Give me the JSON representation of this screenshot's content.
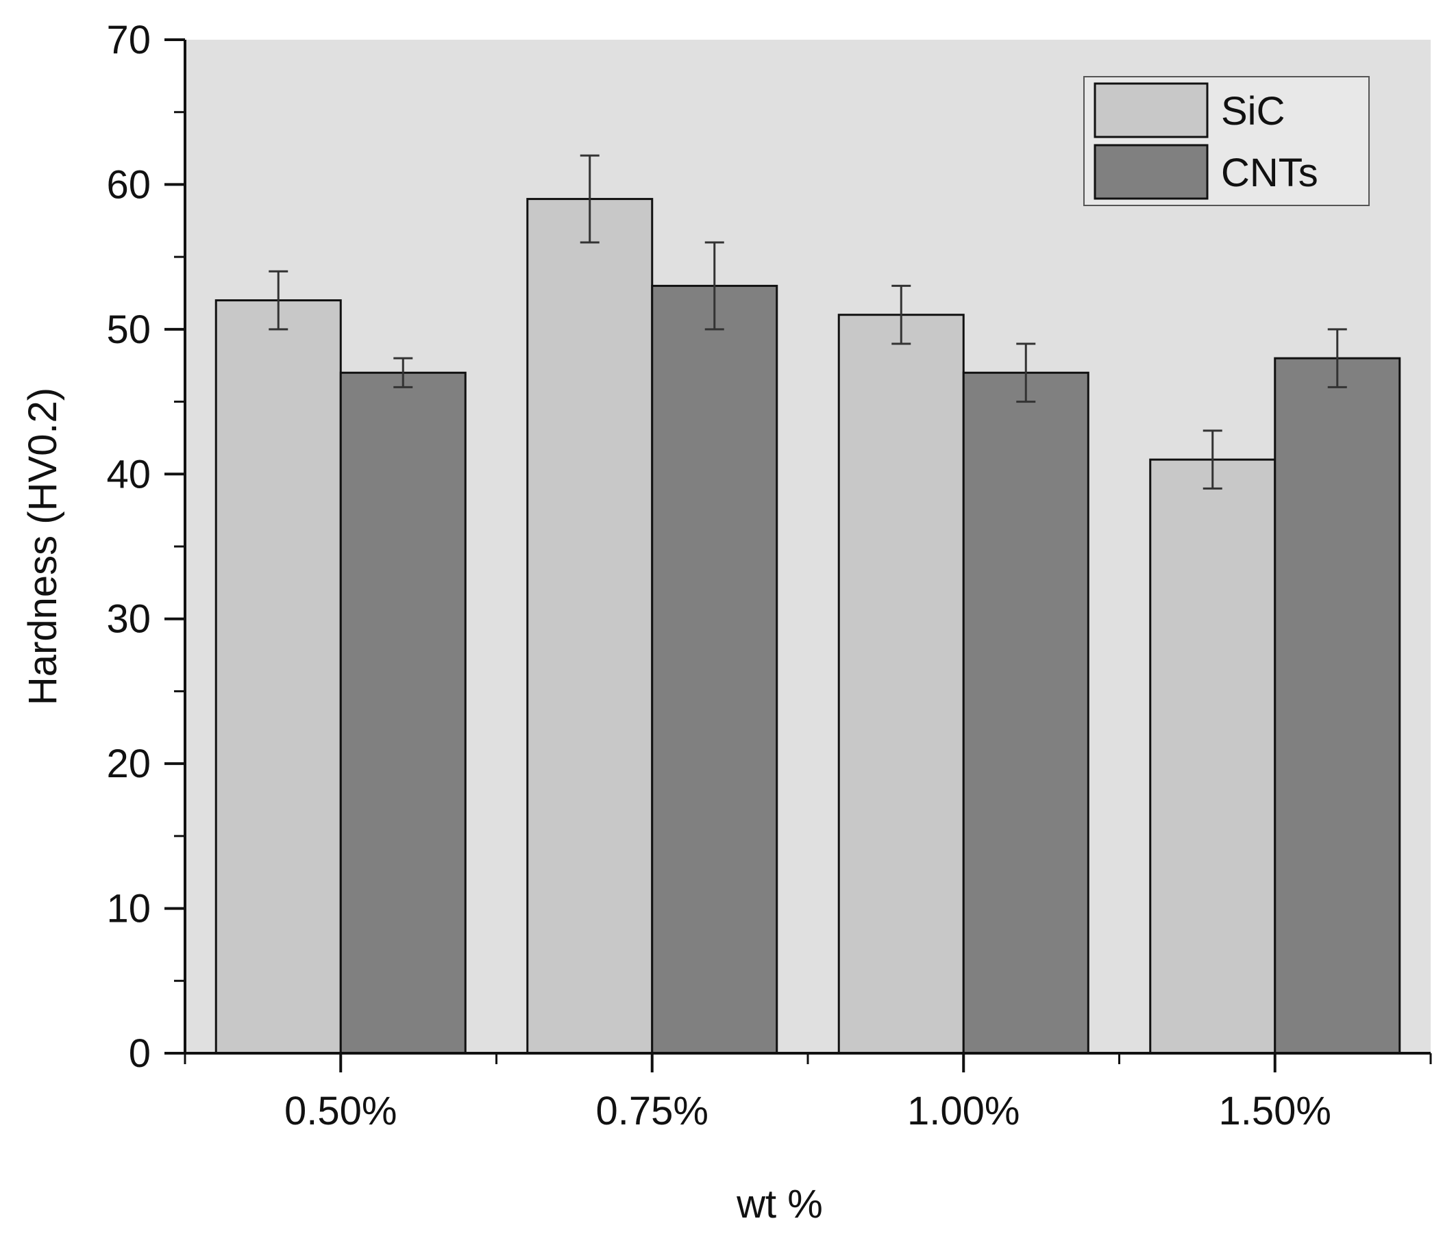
{
  "chart_data": {
    "type": "bar",
    "title": "",
    "xlabel": "wt %",
    "ylabel": "Hardness (HV0.2)",
    "categories": [
      "0.50%",
      "0.75%",
      "1.00%",
      "1.50%"
    ],
    "ylim": [
      0,
      70
    ],
    "yticks": [
      0,
      10,
      20,
      30,
      40,
      50,
      60,
      70
    ],
    "ytick_labels": [
      "0",
      "10",
      "20",
      "30",
      "40",
      "50",
      "60",
      "70"
    ],
    "grid": false,
    "legend_position": "top-right",
    "series": [
      {
        "name": "SiC",
        "color": "#c8c8c8",
        "values": [
          52,
          59,
          51,
          41
        ],
        "errors": [
          2,
          3,
          2,
          2
        ]
      },
      {
        "name": "CNTs",
        "color": "#808080",
        "values": [
          47,
          53,
          47,
          48
        ],
        "errors": [
          1,
          3,
          2,
          2
        ]
      }
    ],
    "plot_background": "#e0e0e0"
  }
}
